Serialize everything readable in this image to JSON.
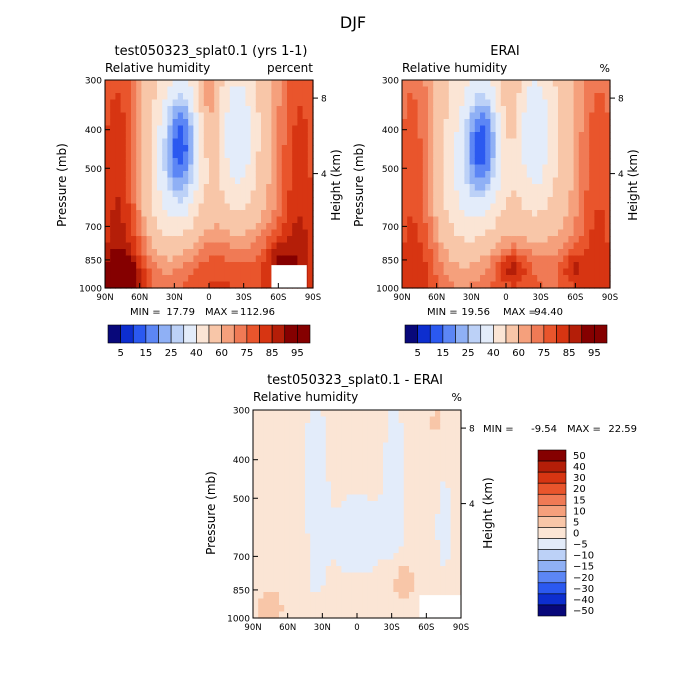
{
  "figure": {
    "title": "DJF"
  },
  "colors": {
    "scale": [
      "#08087a",
      "#0d2ecf",
      "#2b59f0",
      "#5c86f5",
      "#8fb0f5",
      "#bcd1f7",
      "#e3ecfa",
      "#fbe5d5",
      "#f8c6a8",
      "#f5a07c",
      "#f07a55",
      "#e9552c",
      "#d73512",
      "#b41e08",
      "#850000"
    ],
    "mask": "#ffffff"
  },
  "chart_data": [
    {
      "type": "heatmap",
      "title": "test050323_splat0.1 (yrs 1-1)",
      "left_label": "Relative humidity",
      "right_label": "percent",
      "ylabel": "Pressure (mb)",
      "y2label": "Height (km)",
      "x_ticks": [
        "90N",
        "60N",
        "30N",
        "0",
        "30S",
        "60S",
        "90S"
      ],
      "y_ticks": [
        "300",
        "400",
        "500",
        "700",
        "850",
        "1000"
      ],
      "y2_ticks": [
        "8",
        "4"
      ],
      "ylim": [
        1000,
        300
      ],
      "stats": {
        "min_label": "MIN =",
        "min": "17.79",
        "max_label": "MAX =",
        "max": "112.96"
      },
      "colorbar": {
        "levels": [
          5,
          10,
          15,
          20,
          25,
          30,
          40,
          50,
          60,
          65,
          70,
          75,
          80,
          85,
          90,
          95
        ],
        "labels": [
          "5",
          "15",
          "25",
          "40",
          "60",
          "75",
          "85",
          "95"
        ]
      }
    },
    {
      "type": "heatmap",
      "title": "ERAI",
      "left_label": "Relative humidity",
      "right_label": "%",
      "ylabel": "Pressure (mb)",
      "y2label": "Height (km)",
      "x_ticks": [
        "90N",
        "60N",
        "30N",
        "0",
        "30S",
        "60S",
        "90S"
      ],
      "y_ticks": [
        "300",
        "400",
        "500",
        "700",
        "850",
        "1000"
      ],
      "y2_ticks": [
        "8",
        "4"
      ],
      "ylim": [
        1000,
        300
      ],
      "stats": {
        "min_label": "MIN =",
        "min": "19.56",
        "max_label": "MAX =",
        "max": "94.40"
      },
      "colorbar": {
        "levels": [
          5,
          10,
          15,
          20,
          25,
          30,
          40,
          50,
          60,
          65,
          70,
          75,
          80,
          85,
          90,
          95
        ],
        "labels": [
          "5",
          "15",
          "25",
          "40",
          "60",
          "75",
          "85",
          "95"
        ]
      }
    },
    {
      "type": "heatmap",
      "title": "test050323_splat0.1 - ERAI",
      "left_label": "Relative humidity",
      "right_label": "%",
      "ylabel": "Pressure (mb)",
      "y2label": "Height (km)",
      "x_ticks": [
        "90N",
        "60N",
        "30N",
        "0",
        "30S",
        "60S",
        "90S"
      ],
      "y_ticks": [
        "300",
        "400",
        "500",
        "700",
        "850",
        "1000"
      ],
      "y2_ticks": [
        "8",
        "4"
      ],
      "ylim": [
        1000,
        300
      ],
      "stats": {
        "min_label": "MIN =",
        "min": "-9.54",
        "max_label": "MAX =",
        "max": "22.59"
      },
      "colorbar": {
        "levels": [
          -50,
          -40,
          -30,
          -20,
          -15,
          -10,
          -5,
          0,
          5,
          10,
          15,
          20,
          30,
          40,
          50
        ],
        "labels": [
          "50",
          "40",
          "30",
          "20",
          "15",
          "10",
          "5",
          "0",
          "−5",
          "−10",
          "−15",
          "−20",
          "−30",
          "−40",
          "−50"
        ]
      }
    }
  ]
}
